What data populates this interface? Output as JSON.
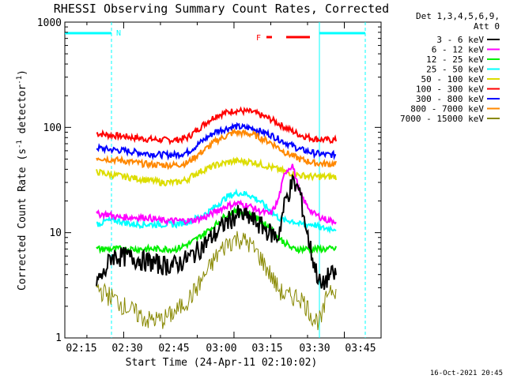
{
  "chart_data": {
    "type": "line",
    "title": "RHESSI Observing Summary Count Rates, Corrected",
    "ylabel_main": "Corrected Count Rate (s",
    "ylabel_sup1": "-1",
    "ylabel_mid": " detector",
    "ylabel_sup2": "-1",
    "ylabel_end": ")",
    "xlabel": "Start Time (24-Apr-11 02:10:02)",
    "yscale": "log",
    "ylim": [
      1,
      1000
    ],
    "y_ticks": [
      "1000",
      "100",
      "10",
      "1"
    ],
    "xlim_minutes": [
      7,
      50
    ],
    "x_ticks": [
      "02:15",
      "02:30",
      "02:45",
      "03:00",
      "03:15",
      "03:30",
      "03:45"
    ],
    "legend_header": [
      "Det 1,3,4,5,6,9,",
      "Att 0"
    ],
    "legend_placement": "right, outside plot",
    "footer": "16-Oct-2021 20:45",
    "flag_labels": {
      "N": "N",
      "F": "F"
    },
    "series": [
      {
        "name": "3 - 6 keV",
        "color": "#000000"
      },
      {
        "name": "6 - 12 keV",
        "color": "#ff00ff"
      },
      {
        "name": "12 - 25 keV",
        "color": "#00ee00"
      },
      {
        "name": "25 - 50 keV",
        "color": "#00ffff"
      },
      {
        "name": "50 - 100 keV",
        "color": "#dddd00"
      },
      {
        "name": "100 - 300 keV",
        "color": "#ff0000"
      },
      {
        "name": "300 - 800 keV",
        "color": "#0000ff"
      },
      {
        "name": "800 - 7000 keV",
        "color": "#ff8800"
      },
      {
        "name": "7000 - 15000 keV",
        "color": "#888800"
      }
    ],
    "curves": [
      {
        "series": 5,
        "x": [
          22,
          25,
          30,
          35,
          40,
          44,
          47,
          49,
          52,
          55,
          60,
          65,
          70,
          74,
          78,
          82,
          85,
          88
        ],
        "y": [
          88,
          85,
          82,
          78,
          76,
          76,
          80,
          90,
          110,
          130,
          145,
          140,
          120,
          100,
          85,
          78,
          76,
          76
        ]
      },
      {
        "series": 6,
        "x": [
          22,
          25,
          30,
          35,
          40,
          44,
          47,
          49,
          52,
          55,
          60,
          65,
          70,
          74,
          78,
          82,
          85,
          88
        ],
        "y": [
          64,
          62,
          60,
          57,
          55,
          55,
          58,
          65,
          78,
          92,
          102,
          98,
          85,
          72,
          62,
          57,
          55,
          55
        ]
      },
      {
        "series": 7,
        "x": [
          22,
          25,
          30,
          35,
          40,
          44,
          47,
          49,
          52,
          55,
          60,
          65,
          70,
          74,
          78,
          82,
          85,
          88
        ],
        "y": [
          52,
          50,
          48,
          45,
          44,
          44,
          46,
          52,
          62,
          75,
          90,
          86,
          72,
          58,
          50,
          46,
          45,
          45
        ]
      },
      {
        "series": 4,
        "x": [
          22,
          25,
          30,
          35,
          40,
          44,
          47,
          49,
          52,
          55,
          60,
          65,
          70,
          74,
          78,
          82,
          85,
          88
        ],
        "y": [
          38,
          36,
          34,
          32,
          30,
          30,
          32,
          36,
          40,
          44,
          48,
          47,
          42,
          38,
          35,
          34,
          34,
          34
        ]
      },
      {
        "series": 3,
        "x": [
          22,
          25,
          28,
          32,
          36,
          40,
          44,
          48,
          52,
          55,
          58,
          61,
          64,
          67,
          70,
          72,
          74,
          76,
          78,
          80,
          82,
          84,
          86,
          88
        ],
        "y": [
          12,
          13,
          13,
          12,
          12,
          12,
          12,
          13,
          15,
          18,
          22,
          24,
          23,
          20,
          16,
          14,
          13,
          13,
          12,
          12,
          12,
          11,
          11,
          11
        ]
      },
      {
        "series": 1,
        "x": [
          22,
          25,
          28,
          32,
          36,
          40,
          44,
          48,
          52,
          55,
          58,
          61,
          64,
          67,
          70,
          72,
          74,
          76,
          78,
          80,
          82,
          84,
          86,
          88
        ],
        "y": [
          15,
          15,
          14,
          14,
          14,
          13,
          13,
          13,
          14,
          16,
          18,
          19,
          18,
          16,
          15,
          20,
          38,
          44,
          24,
          18,
          15,
          14,
          13,
          13
        ]
      },
      {
        "series": 2,
        "x": [
          22,
          25,
          28,
          32,
          36,
          40,
          44,
          48,
          52,
          55,
          58,
          61,
          64,
          67,
          70,
          72,
          74,
          76,
          78,
          80,
          82,
          84,
          86,
          88
        ],
        "y": [
          7,
          7,
          7,
          7,
          7,
          7,
          7,
          8,
          10,
          12,
          15,
          16,
          15,
          13,
          11,
          9,
          8,
          7,
          7,
          7,
          7,
          7,
          7,
          7
        ]
      },
      {
        "series": 0,
        "x": [
          22,
          24,
          26,
          30,
          35,
          40,
          44,
          48,
          52,
          55,
          58,
          61,
          64,
          67,
          70,
          72,
          74,
          76,
          78,
          80,
          82,
          84,
          86,
          88
        ],
        "y": [
          3.5,
          4,
          6,
          6,
          5.5,
          5,
          5,
          6,
          8,
          10,
          13,
          15,
          14,
          12,
          10,
          9,
          20,
          30,
          25,
          10,
          5,
          3,
          4,
          4
        ]
      },
      {
        "series": 8,
        "x": [
          22,
          26,
          30,
          36,
          40,
          44,
          48,
          52,
          55,
          58,
          61,
          64,
          67,
          70,
          72,
          74,
          76,
          78,
          80,
          82,
          84,
          86,
          88
        ],
        "y": [
          3,
          2.5,
          2,
          1.5,
          1.5,
          1.8,
          2.5,
          4,
          6,
          8,
          9,
          8,
          6,
          4,
          3,
          2.5,
          2.5,
          2.5,
          2,
          1.5,
          1.5,
          3,
          3
        ]
      }
    ]
  }
}
